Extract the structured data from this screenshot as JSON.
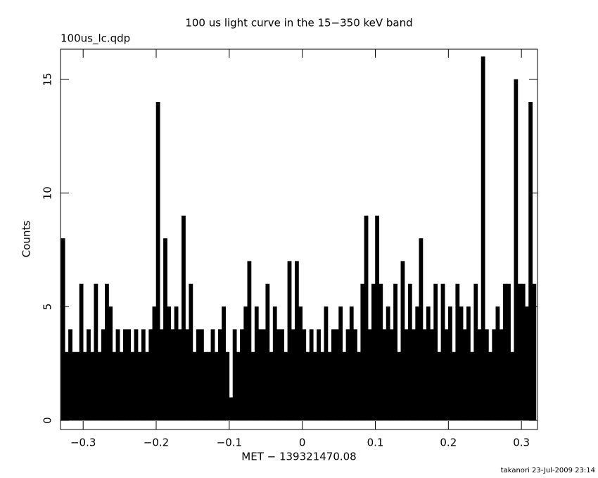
{
  "chart_data": {
    "type": "histogram",
    "title": "100 us light curve in the 15−350 keV band",
    "subtitle": "100us_lc.qdp",
    "x_label": "MET − 139321470.08",
    "y_label": "Counts",
    "footer": "takanori 23-Jul-2009 23:14",
    "color": "#000000",
    "bins": [
      -0.33,
      -0.325,
      -0.32,
      -0.315,
      -0.31,
      -0.305,
      -0.3,
      -0.295,
      -0.29,
      -0.285,
      -0.28,
      -0.275,
      -0.27,
      -0.265,
      -0.26,
      -0.255,
      -0.25,
      -0.245,
      -0.24,
      -0.235,
      -0.23,
      -0.225,
      -0.22,
      -0.215,
      -0.21,
      -0.205,
      -0.2,
      -0.195,
      -0.19,
      -0.185,
      -0.18,
      -0.175,
      -0.17,
      -0.165,
      -0.16,
      -0.155,
      -0.15,
      -0.145,
      -0.14,
      -0.135,
      -0.13,
      -0.125,
      -0.12,
      -0.115,
      -0.11,
      -0.105,
      -0.1,
      -0.095,
      -0.09,
      -0.085,
      -0.08,
      -0.075,
      -0.07,
      -0.065,
      -0.06,
      -0.055,
      -0.05,
      -0.045,
      -0.04,
      -0.035,
      -0.03,
      -0.025,
      -0.02,
      -0.015,
      -0.01,
      -0.005,
      0,
      0.005,
      0.01,
      0.015,
      0.02,
      0.025,
      0.03,
      0.035,
      0.04,
      0.045,
      0.05,
      0.055,
      0.06,
      0.065,
      0.07,
      0.075,
      0.08,
      0.085,
      0.09,
      0.095,
      0.1,
      0.105,
      0.11,
      0.115,
      0.12,
      0.125,
      0.13,
      0.135,
      0.14,
      0.145,
      0.15,
      0.155,
      0.16,
      0.165,
      0.17,
      0.175,
      0.18,
      0.185,
      0.19,
      0.195,
      0.2,
      0.205,
      0.21,
      0.215,
      0.22,
      0.225,
      0.23,
      0.235,
      0.24,
      0.245,
      0.25,
      0.255,
      0.26,
      0.265,
      0.27,
      0.275,
      0.28,
      0.285,
      0.29,
      0.295,
      0.3,
      0.305,
      0.31,
      0.315,
      0.32
    ],
    "values": [
      8,
      3,
      4,
      3,
      3,
      6,
      3,
      4,
      3,
      6,
      3,
      4,
      6,
      5,
      3,
      4,
      3,
      4,
      4,
      3,
      4,
      3,
      4,
      3,
      4,
      5,
      14,
      4,
      8,
      5,
      4,
      5,
      4,
      9,
      4,
      6,
      3,
      4,
      4,
      3,
      3,
      4,
      3,
      4,
      5,
      3,
      1,
      4,
      3,
      4,
      5,
      7,
      3,
      5,
      4,
      4,
      6,
      3,
      5,
      4,
      4,
      3,
      7,
      4,
      7,
      5,
      4,
      3,
      4,
      3,
      4,
      3,
      5,
      3,
      4,
      4,
      5,
      3,
      4,
      5,
      4,
      3,
      6,
      9,
      4,
      6,
      9,
      6,
      4,
      5,
      4,
      6,
      3,
      7,
      4,
      6,
      4,
      5,
      8,
      4,
      5,
      4,
      6,
      3,
      6,
      4,
      5,
      3,
      6,
      5,
      4,
      5,
      3,
      6,
      4,
      16,
      4,
      3,
      4,
      5,
      4,
      6,
      6,
      3,
      15,
      6,
      6,
      5,
      14,
      6
    ],
    "xlim": [
      -0.331,
      0.322
    ],
    "ylim": [
      -0.4,
      16.33
    ],
    "xticks": [
      {
        "value": -0.3,
        "label": "−0.3"
      },
      {
        "value": -0.2,
        "label": "−0.2"
      },
      {
        "value": -0.1,
        "label": "−0.1"
      },
      0,
      0.1,
      0.2,
      0.3
    ],
    "yticks": [
      0,
      5,
      10,
      15
    ]
  }
}
